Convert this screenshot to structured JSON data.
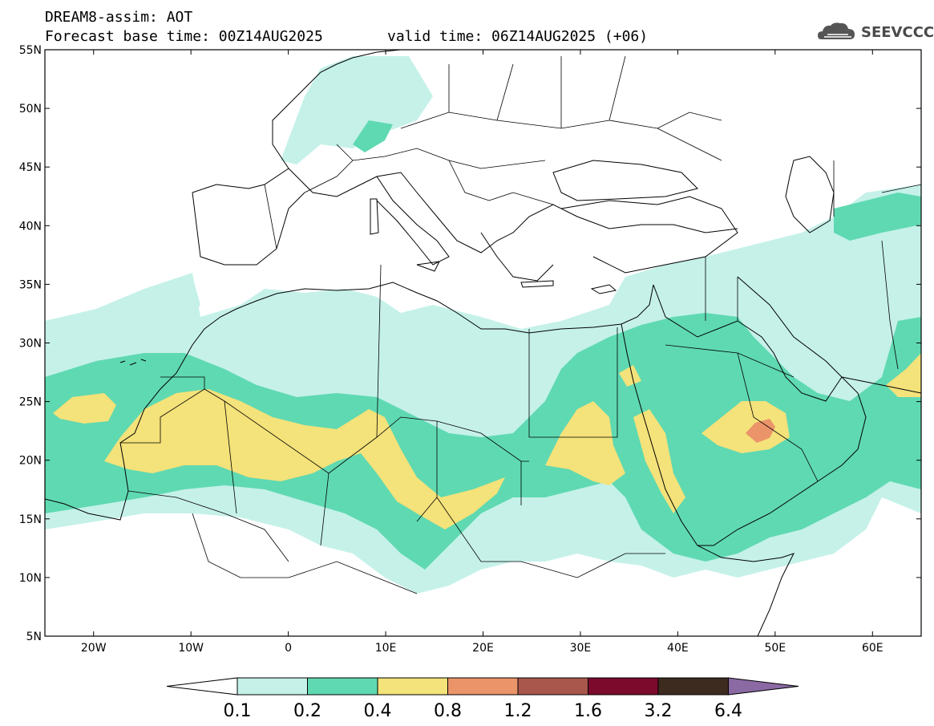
{
  "header": {
    "line1": "DREAM8-assim: AOT",
    "line2": "Forecast base time: 00Z14AUG2025",
    "line3": "valid time: 06Z14AUG2025 (+06)"
  },
  "logo": {
    "text": "SEEVCCC",
    "icon": "cloud-icon"
  },
  "map": {
    "lon_range": [
      -25,
      65
    ],
    "lat_range": [
      5,
      55
    ],
    "lat_labels": [
      "55N",
      "50N",
      "45N",
      "40N",
      "35N",
      "30N",
      "25N",
      "20N",
      "15N",
      "10N",
      "5N"
    ],
    "lon_labels": [
      "20W",
      "10W",
      "0",
      "10E",
      "20E",
      "30E",
      "40E",
      "50E",
      "60E"
    ],
    "field": "aerosol optical thickness"
  },
  "colorbar": {
    "levels": [
      "0.1",
      "0.2",
      "0.4",
      "0.8",
      "1.2",
      "1.6",
      "3.2",
      "6.4"
    ],
    "colors": [
      "#c5f1e9",
      "#5fd9b1",
      "#f4e27a",
      "#eb946a",
      "#a9574c",
      "#7b0a2d",
      "#3d2b1f",
      "#8b6aa4"
    ]
  }
}
